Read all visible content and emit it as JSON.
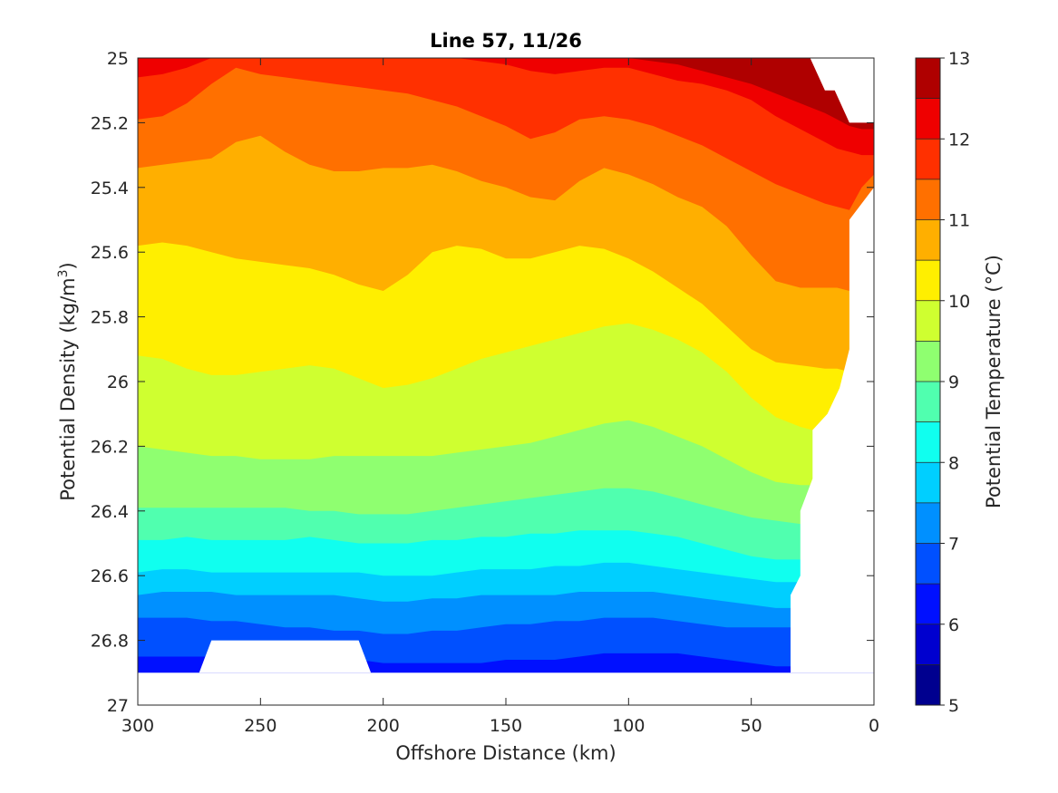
{
  "chart_data": {
    "type": "filled-contour",
    "title": "Line 57, 11/26",
    "xlabel": "Offshore Distance (km)",
    "ylabel": "Potential Density (kg/m",
    "ylabel_sup": "3",
    "ylabel_close": ")",
    "xlim": [
      300,
      0
    ],
    "ylim": [
      25,
      27
    ],
    "y_reversed": true,
    "x_ticks": [
      300,
      250,
      200,
      150,
      100,
      50,
      0
    ],
    "y_ticks": [
      25,
      25.2,
      25.4,
      25.6,
      25.8,
      26,
      26.2,
      26.4,
      26.6,
      26.8,
      27
    ],
    "x_tick_labels": [
      "300",
      "250",
      "200",
      "150",
      "100",
      "50",
      "0"
    ],
    "y_tick_labels": [
      "25",
      "25.2",
      "25.4",
      "25.6",
      "25.8",
      "26",
      "26.2",
      "26.4",
      "26.6",
      "26.8",
      "27"
    ],
    "colorbar": {
      "label": "Potential Temperature (°C)",
      "range": [
        5,
        13
      ],
      "ticks": [
        5,
        6,
        7,
        8,
        9,
        10,
        11,
        12,
        13
      ],
      "tick_labels": [
        "5",
        "6",
        "7",
        "8",
        "9",
        "10",
        "11",
        "12",
        "13"
      ],
      "levels": [
        5,
        5.5,
        6,
        6.5,
        7,
        7.5,
        8,
        8.5,
        9,
        9.5,
        10,
        10.5,
        11,
        11.5,
        12,
        12.5,
        13
      ],
      "colormap": "jet",
      "colors": [
        "#00008F",
        "#0000CF",
        "#0010FF",
        "#0050FF",
        "#0090FF",
        "#00CFFF",
        "#10FFEF",
        "#50FFAF",
        "#8FFF70",
        "#CFFF30",
        "#FFEF00",
        "#FFAF00",
        "#FF7000",
        "#FF3000",
        "#EF0000",
        "#AF0000"
      ]
    },
    "x_profile": [
      300,
      290,
      280,
      270,
      260,
      250,
      240,
      230,
      220,
      210,
      200,
      190,
      180,
      170,
      160,
      150,
      140,
      130,
      120,
      110,
      100,
      90,
      80,
      70,
      60,
      50,
      40,
      30,
      20,
      15,
      10,
      5,
      0
    ],
    "isopycnal_depths": [
      {
        "temperature": 12.5,
        "y": [
          25,
          25,
          25,
          25,
          25,
          25,
          25,
          25,
          25,
          25,
          25,
          25,
          25,
          25,
          25,
          25,
          25,
          25,
          25,
          25,
          25,
          25.01,
          25.02,
          25.04,
          25.06,
          25.08,
          25.11,
          25.14,
          25.17,
          25.19,
          25.21,
          25.22,
          25.22
        ]
      },
      {
        "temperature": 12.0,
        "y": [
          25.06,
          25.05,
          25.03,
          25,
          25,
          25,
          25,
          25,
          25,
          25,
          25,
          25,
          25,
          25,
          25.01,
          25.02,
          25.04,
          25.05,
          25.04,
          25.03,
          25.03,
          25.05,
          25.07,
          25.08,
          25.1,
          25.13,
          25.18,
          25.22,
          25.26,
          25.28,
          25.29,
          25.3,
          25.3
        ]
      },
      {
        "temperature": 11.5,
        "y": [
          25.19,
          25.18,
          25.14,
          25.08,
          25.03,
          25.05,
          25.06,
          25.07,
          25.08,
          25.09,
          25.1,
          25.11,
          25.13,
          25.15,
          25.18,
          25.21,
          25.25,
          25.23,
          25.19,
          25.18,
          25.19,
          25.21,
          25.24,
          25.27,
          25.31,
          25.35,
          25.39,
          25.42,
          25.45,
          25.46,
          25.47,
          25.4,
          25.36
        ]
      },
      {
        "temperature": 11.0,
        "y": [
          25.34,
          25.33,
          25.32,
          25.31,
          25.26,
          25.24,
          25.29,
          25.33,
          25.35,
          25.35,
          25.34,
          25.34,
          25.33,
          25.35,
          25.38,
          25.4,
          25.43,
          25.44,
          25.38,
          25.34,
          25.36,
          25.39,
          25.43,
          25.46,
          25.52,
          25.61,
          25.69,
          25.71,
          25.71,
          25.71,
          25.72,
          25.74,
          25.76
        ]
      },
      {
        "temperature": 10.5,
        "y": [
          25.58,
          25.57,
          25.58,
          25.6,
          25.62,
          25.63,
          25.64,
          25.65,
          25.67,
          25.7,
          25.72,
          25.67,
          25.6,
          25.58,
          25.59,
          25.62,
          25.62,
          25.6,
          25.58,
          25.59,
          25.62,
          25.66,
          25.71,
          25.76,
          25.83,
          25.9,
          25.94,
          25.95,
          25.96,
          25.96,
          25.97,
          26,
          26.05
        ]
      },
      {
        "temperature": 10.0,
        "y": [
          25.92,
          25.93,
          25.96,
          25.98,
          25.98,
          25.97,
          25.96,
          25.95,
          25.96,
          25.99,
          26.02,
          26.01,
          25.99,
          25.96,
          25.93,
          25.91,
          25.89,
          25.87,
          25.85,
          25.83,
          25.82,
          25.84,
          25.87,
          25.91,
          25.97,
          26.05,
          26.11,
          26.14,
          26.16,
          26.17,
          26.18,
          26.2,
          26.23
        ]
      },
      {
        "temperature": 9.5,
        "y": [
          26.2,
          26.21,
          26.22,
          26.23,
          26.23,
          26.24,
          26.24,
          26.24,
          26.23,
          26.23,
          26.23,
          26.23,
          26.23,
          26.22,
          26.21,
          26.2,
          26.19,
          26.17,
          26.15,
          26.13,
          26.12,
          26.14,
          26.17,
          26.2,
          26.24,
          26.28,
          26.31,
          26.32,
          26.32,
          26.32,
          26.32,
          26.33,
          26.34
        ]
      },
      {
        "temperature": 9.0,
        "y": [
          26.39,
          26.39,
          26.39,
          26.39,
          26.39,
          26.39,
          26.39,
          26.4,
          26.4,
          26.41,
          26.41,
          26.41,
          26.4,
          26.39,
          26.38,
          26.37,
          26.36,
          26.35,
          26.34,
          26.33,
          26.33,
          26.34,
          26.36,
          26.38,
          26.4,
          26.42,
          26.43,
          26.44,
          26.44,
          26.44,
          26.44,
          26.44,
          26.44
        ]
      },
      {
        "temperature": 8.5,
        "y": [
          26.49,
          26.49,
          26.48,
          26.49,
          26.49,
          26.49,
          26.49,
          26.48,
          26.49,
          26.5,
          26.5,
          26.5,
          26.49,
          26.49,
          26.48,
          26.48,
          26.47,
          26.47,
          26.46,
          26.46,
          26.46,
          26.47,
          26.48,
          26.5,
          26.52,
          26.54,
          26.55,
          26.55,
          26.55,
          26.55,
          26.55,
          26.55,
          26.55
        ]
      },
      {
        "temperature": 8.0,
        "y": [
          26.59,
          26.58,
          26.58,
          26.59,
          26.59,
          26.59,
          26.59,
          26.59,
          26.59,
          26.59,
          26.6,
          26.6,
          26.6,
          26.59,
          26.58,
          26.58,
          26.58,
          26.57,
          26.57,
          26.56,
          26.56,
          26.57,
          26.58,
          26.59,
          26.6,
          26.61,
          26.62,
          26.62,
          26.62,
          26.62,
          26.62,
          26.62,
          26.62
        ]
      },
      {
        "temperature": 7.5,
        "y": [
          26.66,
          26.65,
          26.65,
          26.65,
          26.66,
          26.66,
          26.66,
          26.66,
          26.66,
          26.67,
          26.68,
          26.68,
          26.67,
          26.67,
          26.66,
          26.66,
          26.66,
          26.66,
          26.65,
          26.65,
          26.65,
          26.65,
          26.66,
          26.67,
          26.68,
          26.69,
          26.7,
          26.7,
          26.7,
          26.7,
          26.7,
          26.7,
          26.7
        ]
      },
      {
        "temperature": 7.0,
        "y": [
          26.73,
          26.73,
          26.73,
          26.74,
          26.74,
          26.75,
          26.76,
          26.76,
          26.77,
          26.77,
          26.78,
          26.78,
          26.77,
          26.77,
          26.76,
          26.75,
          26.75,
          26.74,
          26.74,
          26.73,
          26.73,
          26.73,
          26.74,
          26.75,
          26.76,
          26.76,
          26.76,
          26.76,
          26.76,
          26.76,
          26.76,
          26.76,
          26.76
        ]
      },
      {
        "temperature": 6.5,
        "y": [
          26.85,
          26.85,
          26.85,
          26.85,
          26.85,
          26.85,
          26.85,
          26.85,
          26.85,
          26.86,
          26.87,
          26.87,
          26.87,
          26.87,
          26.87,
          26.86,
          26.86,
          26.86,
          26.85,
          26.84,
          26.84,
          26.84,
          26.84,
          26.85,
          26.86,
          26.87,
          26.88,
          26.88,
          26.88,
          26.88,
          26.88,
          26.88,
          26.88
        ]
      }
    ],
    "no_data_regions": [
      {
        "x": [
          26,
          20,
          16,
          10,
          10,
          0,
          0,
          10,
          10,
          14,
          19,
          19,
          25,
          25,
          30,
          30,
          34,
          34,
          0,
          0
        ],
        "y": [
          25,
          25.1,
          25.1,
          25.2,
          25.2,
          25.2,
          25.4,
          25.5,
          25.9,
          26.02,
          26.1,
          26.1,
          26.15,
          26.3,
          26.4,
          26.6,
          26.66,
          26.9,
          26.9,
          25
        ]
      },
      {
        "x": [
          275,
          270,
          210,
          205
        ],
        "y": [
          26.9,
          26.8,
          26.8,
          26.9
        ]
      }
    ]
  }
}
